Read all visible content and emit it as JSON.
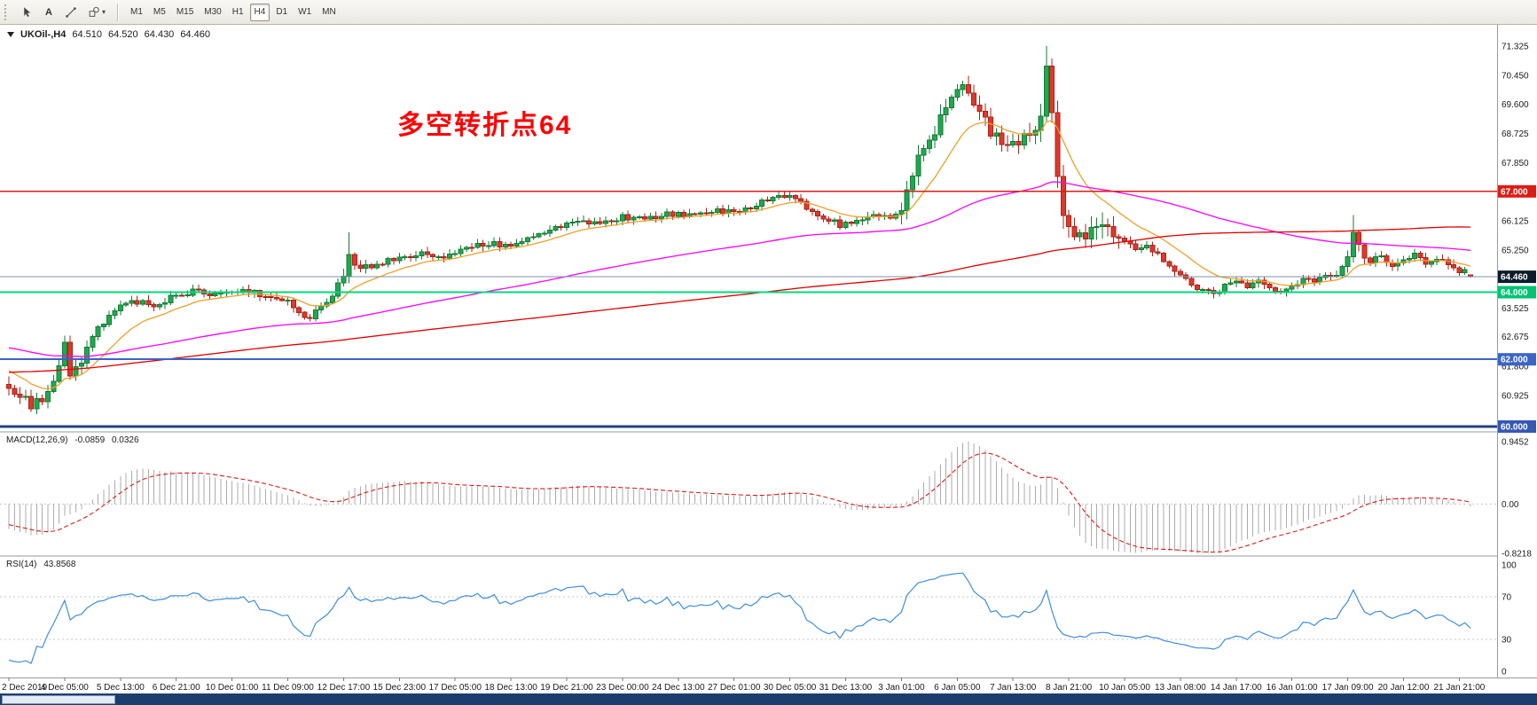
{
  "toolbar": {
    "tools": [
      {
        "id": "cursor",
        "label": ""
      },
      {
        "id": "text",
        "label": "A"
      },
      {
        "id": "trendline",
        "label": ""
      },
      {
        "id": "objects",
        "label": ""
      }
    ],
    "timeframes": [
      "M1",
      "M5",
      "M15",
      "M30",
      "H1",
      "H4",
      "D1",
      "W1",
      "MN"
    ],
    "active_timeframe": "H4",
    "caret": "▾"
  },
  "chart_header": {
    "symbol": "UKOil-,H4",
    "open": "64.510",
    "high": "64.520",
    "low": "64.430",
    "close": "64.460"
  },
  "annotation": {
    "text": "多空转折点64",
    "color": "#ff0000"
  },
  "macd_panel": {
    "label": "MACD(12,26,9)",
    "value_main": "-0.0859",
    "value_signal": "0.0326",
    "axis": [
      "0.9452",
      "0.00",
      "-0.8218"
    ]
  },
  "rsi_panel": {
    "label": "RSI(14)",
    "value": "43.8568",
    "axis": [
      "100",
      "70",
      "30",
      "0"
    ],
    "levels": [
      70,
      30
    ]
  },
  "chart_data": {
    "type": "candlestick",
    "symbol": "UKOil-",
    "timeframe": "H4",
    "visible_bars": 263,
    "bars_per_label": 10,
    "y_range": [
      60.0,
      71.325
    ],
    "price_axis_ticks": [
      {
        "label": "71.325",
        "value": 71.325
      },
      {
        "label": "70.450",
        "value": 70.45
      },
      {
        "label": "69.600",
        "value": 69.6
      },
      {
        "label": "68.725",
        "value": 68.725
      },
      {
        "label": "67.850",
        "value": 67.85
      },
      {
        "label": "66.125",
        "value": 66.125
      },
      {
        "label": "65.250",
        "value": 65.25
      },
      {
        "label": "63.525",
        "value": 63.525
      },
      {
        "label": "62.675",
        "value": 62.675
      },
      {
        "label": "61.800",
        "value": 61.8
      },
      {
        "label": "60.925",
        "value": 60.925
      }
    ],
    "hlines": [
      {
        "label": "67.000",
        "value": 67.0,
        "color": "#dd1c14",
        "width": 1.4,
        "badge": "#dd1c14"
      },
      {
        "label": "64.000",
        "value": 64.0,
        "color": "#00d97e",
        "width": 2,
        "badge": "#00c374"
      },
      {
        "label": "62.000",
        "value": 62.0,
        "color": "#3a64c8",
        "width": 2,
        "badge": "#3a64c8"
      },
      {
        "label": "60.000",
        "value": 60.0,
        "color": "#24407e",
        "width": 3,
        "badge": "#3558b4"
      }
    ],
    "current_price": {
      "label": "64.460",
      "value": 64.46,
      "line_color": "#7d93aa",
      "badge": "#0d1b2a"
    },
    "time_labels": [
      "2 Dec 2019",
      "4 Dec 05:00",
      "5 Dec 13:00",
      "6 Dec 21:00",
      "10 Dec 01:00",
      "11 Dec 09:00",
      "12 Dec 17:00",
      "15 Dec 23:00",
      "17 Dec 05:00",
      "18 Dec 13:00",
      "19 Dec 21:00",
      "23 Dec 00:00",
      "24 Dec 13:00",
      "27 Dec 01:00",
      "30 Dec 05:00",
      "31 Dec 13:00",
      "3 Jan 01:00",
      "6 Jan 05:00",
      "7 Jan 13:00",
      "8 Jan 21:00",
      "10 Jan 05:00",
      "13 Jan 08:00",
      "14 Jan 17:00",
      "16 Jan 01:00",
      "17 Jan 09:00",
      "20 Jan 12:00",
      "21 Jan 21:00"
    ],
    "price_anchors": [
      [
        -200,
        59.4
      ],
      [
        -170,
        59.9
      ],
      [
        -140,
        60.6
      ],
      [
        -110,
        61.9
      ],
      [
        -85,
        62.5
      ],
      [
        -60,
        63.0
      ],
      [
        -40,
        63.35
      ],
      [
        -25,
        62.8
      ],
      [
        -12,
        62.2
      ],
      [
        -6,
        61.8
      ],
      [
        -2,
        61.35
      ],
      [
        0,
        61.15
      ],
      [
        2,
        61.0
      ],
      [
        4,
        60.6
      ],
      [
        6,
        60.85
      ],
      [
        8,
        61.25
      ],
      [
        10,
        62.55
      ],
      [
        11,
        61.6
      ],
      [
        13,
        62.0
      ],
      [
        16,
        62.9
      ],
      [
        19,
        63.45
      ],
      [
        22,
        63.75
      ],
      [
        26,
        63.6
      ],
      [
        30,
        63.9
      ],
      [
        34,
        64.05
      ],
      [
        38,
        63.9
      ],
      [
        42,
        64.1
      ],
      [
        46,
        63.85
      ],
      [
        50,
        63.8
      ],
      [
        52,
        63.35
      ],
      [
        54,
        63.25
      ],
      [
        56,
        63.6
      ],
      [
        58,
        63.9
      ],
      [
        60,
        64.55
      ],
      [
        61,
        65.05
      ],
      [
        63,
        64.7
      ],
      [
        66,
        64.85
      ],
      [
        70,
        65.05
      ],
      [
        74,
        65.15
      ],
      [
        78,
        65.05
      ],
      [
        82,
        65.35
      ],
      [
        86,
        65.45
      ],
      [
        90,
        65.4
      ],
      [
        94,
        65.65
      ],
      [
        98,
        65.95
      ],
      [
        102,
        66.15
      ],
      [
        106,
        66.05
      ],
      [
        110,
        66.25
      ],
      [
        114,
        66.15
      ],
      [
        118,
        66.35
      ],
      [
        122,
        66.3
      ],
      [
        126,
        66.45
      ],
      [
        130,
        66.4
      ],
      [
        134,
        66.6
      ],
      [
        137,
        66.8
      ],
      [
        140,
        66.9
      ],
      [
        143,
        66.55
      ],
      [
        146,
        66.2
      ],
      [
        149,
        66.0
      ],
      [
        152,
        66.15
      ],
      [
        155,
        66.3
      ],
      [
        158,
        66.2
      ],
      [
        160,
        66.3
      ],
      [
        162,
        67.5
      ],
      [
        164,
        68.4
      ],
      [
        166,
        68.8
      ],
      [
        168,
        69.6
      ],
      [
        170,
        70.1
      ],
      [
        171,
        70.35
      ],
      [
        172,
        69.9
      ],
      [
        174,
        69.3
      ],
      [
        176,
        68.8
      ],
      [
        178,
        68.5
      ],
      [
        180,
        68.35
      ],
      [
        182,
        68.6
      ],
      [
        184,
        68.95
      ],
      [
        185,
        69.4
      ],
      [
        186,
        70.6
      ],
      [
        187,
        69.2
      ],
      [
        188,
        67.4
      ],
      [
        189,
        66.3
      ],
      [
        190,
        65.9
      ],
      [
        192,
        65.6
      ],
      [
        194,
        65.95
      ],
      [
        196,
        66.2
      ],
      [
        198,
        65.8
      ],
      [
        200,
        65.5
      ],
      [
        202,
        65.3
      ],
      [
        204,
        65.45
      ],
      [
        206,
        65.1
      ],
      [
        208,
        64.85
      ],
      [
        210,
        64.55
      ],
      [
        212,
        64.25
      ],
      [
        214,
        64.05
      ],
      [
        216,
        63.95
      ],
      [
        218,
        64.2
      ],
      [
        220,
        64.35
      ],
      [
        222,
        64.15
      ],
      [
        224,
        64.3
      ],
      [
        226,
        64.1
      ],
      [
        228,
        63.95
      ],
      [
        230,
        64.2
      ],
      [
        232,
        64.4
      ],
      [
        234,
        64.25
      ],
      [
        236,
        64.45
      ],
      [
        238,
        64.5
      ],
      [
        240,
        65.0
      ],
      [
        241,
        65.85
      ],
      [
        242,
        65.3
      ],
      [
        244,
        64.9
      ],
      [
        246,
        65.05
      ],
      [
        248,
        64.85
      ],
      [
        250,
        65.0
      ],
      [
        252,
        65.1
      ],
      [
        254,
        64.9
      ],
      [
        256,
        65.05
      ],
      [
        258,
        64.8
      ],
      [
        260,
        64.6
      ],
      [
        261,
        64.75
      ],
      [
        262,
        64.46
      ]
    ],
    "volatility_zones": [
      {
        "from": 0,
        "to": 14,
        "mult": 1.6
      },
      {
        "from": 59,
        "to": 64,
        "mult": 1.5
      },
      {
        "from": 160,
        "to": 199,
        "mult": 2.2
      },
      {
        "from": 185,
        "to": 196,
        "mult": 2.6
      },
      {
        "from": 240,
        "to": 243,
        "mult": 1.5
      }
    ],
    "forced": {
      "4": {
        "l": 60.43
      },
      "61": {
        "h": 65.78
      },
      "186": {
        "h": 71.33,
        "l": 69.1
      },
      "241": {
        "h": 66.3
      },
      "262": {
        "o": 64.51,
        "h": 64.52,
        "l": 64.43,
        "c": 64.46
      }
    },
    "moving_averages": [
      {
        "name": "ma-fast",
        "type": "ema",
        "period": 13,
        "color": "#f0a028"
      },
      {
        "name": "ma-mid",
        "type": "ema",
        "period": 89,
        "color": "#ff00ff"
      },
      {
        "name": "ma-slow",
        "type": "sma",
        "period": 200,
        "color": "#e00000"
      }
    ],
    "macd": {
      "fast": 12,
      "slow": 26,
      "signal": 9,
      "hist_color": "#ababab",
      "signal_color": "#e01818"
    },
    "rsi": {
      "period": 14,
      "color": "#3e8ede"
    },
    "candle_up": {
      "fill": "#1fa94e",
      "stroke": "#157a36"
    },
    "candle_down": {
      "fill": "#e0382a",
      "stroke": "#a8231a"
    }
  }
}
